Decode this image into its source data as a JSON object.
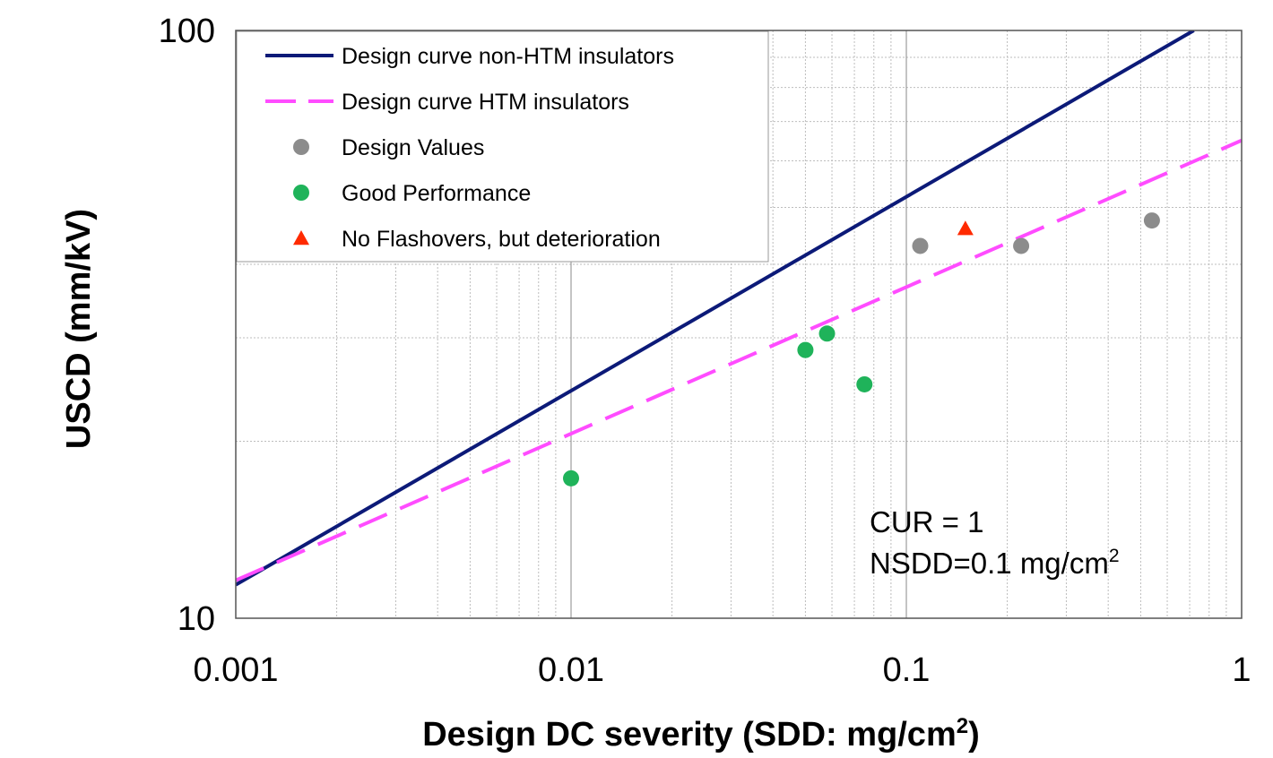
{
  "chart_data": {
    "type": "scatter",
    "title": "",
    "xlabel": "Design DC severity (SDD: mg/cm",
    "xlabel_sup": "2",
    "xlabel_end": ")",
    "ylabel": "USCD (mm/kV)",
    "x_scale": "log",
    "y_scale": "log",
    "xlim": [
      0.001,
      1
    ],
    "ylim": [
      10,
      100
    ],
    "x_ticks": [
      {
        "value": 0.001,
        "label": "0.001"
      },
      {
        "value": 0.01,
        "label": "0.01"
      },
      {
        "value": 0.1,
        "label": "0.1"
      },
      {
        "value": 1,
        "label": "1"
      }
    ],
    "y_ticks": [
      {
        "value": 10,
        "label": "10"
      },
      {
        "value": 100,
        "label": "100"
      }
    ],
    "grid": true,
    "legend_position": "top-left",
    "series": [
      {
        "name": "Design curve non-HTM insulators",
        "kind": "line",
        "style": "solid",
        "color": "#0c1a78",
        "x": [
          0.001,
          0.72
        ],
        "y": [
          11.4,
          100
        ]
      },
      {
        "name": "Design curve HTM insulators",
        "kind": "line",
        "style": "dashed",
        "color": "#ff4cff",
        "x": [
          0.001,
          1
        ],
        "y": [
          11.6,
          65
        ]
      },
      {
        "name": "Design Values",
        "kind": "scatter",
        "marker": "circle",
        "color": "#8c8c8c",
        "x": [
          0.11,
          0.22,
          0.54
        ],
        "y": [
          43,
          43,
          47.5
        ]
      },
      {
        "name": "Good Performance",
        "kind": "scatter",
        "marker": "circle",
        "color": "#1fb35a",
        "x": [
          0.01,
          0.05,
          0.058,
          0.075
        ],
        "y": [
          17.3,
          28.6,
          30.5,
          25
        ]
      },
      {
        "name": "No Flashovers, but deterioration",
        "kind": "scatter",
        "marker": "triangle",
        "color": "#ff2a00",
        "x": [
          0.15
        ],
        "y": [
          46
        ]
      }
    ],
    "annotations": [
      "CUR = 1",
      "NSDD=0.1 mg/cm",
      "2"
    ]
  }
}
